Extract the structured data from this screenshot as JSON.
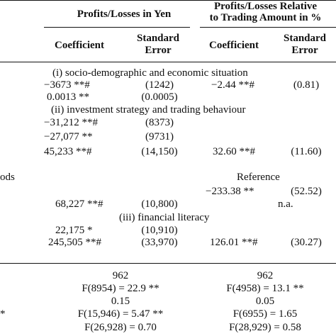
{
  "header": {
    "group1_title": "Profits/Losses in Yen",
    "group2_title_line1": "Profits/Losses Relative",
    "group2_title_line2": "to Trading Amount in %",
    "coefficient": "Coefficient",
    "standard": "Standard",
    "error": "Error"
  },
  "sections": {
    "s1": "(i) socio-demographic and economic situation",
    "s2": "(ii) investment strategy and trading behaviour",
    "s3": "(iii) financial literacy"
  },
  "side_labels": {
    "ods": "ods",
    "star": "*"
  },
  "rows": {
    "r1_c1": "−3673 **#",
    "r1_e1": "(1242)",
    "r1_c2": "−2.44 **#",
    "r1_e2": "(0.81)",
    "r2_c1": "0.0013 **",
    "r2_e1": "(0.0005)",
    "r3_c1": "−31,212 **#",
    "r3_e1": "(8373)",
    "r4_c1": "−27,077 **",
    "r4_e1": "(9731)",
    "r5_c1": "45,233 **#",
    "r5_e1": "(14,150)",
    "r5_c2": "32.60 **#",
    "r5_e2": "(11.60)",
    "r6_ref": "Reference",
    "r7_c2": "−233.38 **",
    "r7_e2": "(52.52)",
    "r8_c1": "68,227 **#",
    "r8_e1": "(10,800)",
    "r8_e2": "n.a.",
    "r9_c1": "22,175 *",
    "r9_e1": "(10,910)",
    "r10_c1": "245,505 **#",
    "r10_e1": "(33,970)",
    "r10_c2": "126.01 **#",
    "r10_e2": "(30.27)"
  },
  "stats": {
    "n1": "962",
    "n2": "962",
    "f1a": "F(8954) = 22.9 **",
    "f1b": "F(4958) = 13.1 **",
    "r2a": "0.15",
    "r2b": "0.05",
    "f2a": "F(15,946) = 5.47 **",
    "f2b": "F(6955) = 1.65",
    "f3a": "F(26,928) = 0.70",
    "f3b": "F(28,929) = 0.58"
  }
}
